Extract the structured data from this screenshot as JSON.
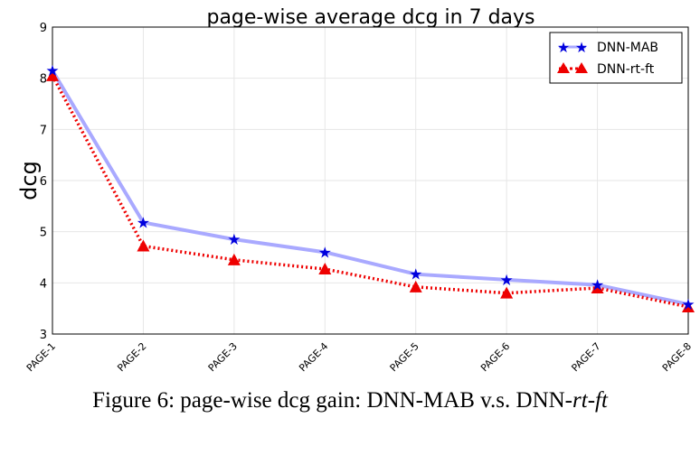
{
  "chart_data": {
    "type": "line",
    "title": "page-wise average dcg in 7 days",
    "xlabel": "",
    "ylabel": "dcg",
    "categories": [
      "PAGE-1",
      "PAGE-2",
      "PAGE-3",
      "PAGE-4",
      "PAGE-5",
      "PAGE-6",
      "PAGE-7",
      "PAGE-8"
    ],
    "ylim": [
      3,
      9
    ],
    "yticks": [
      "3",
      "4",
      "5",
      "6",
      "7",
      "8",
      "9"
    ],
    "grid": true,
    "legend_position": "top-right",
    "series": [
      {
        "name": "DNN-MAB",
        "values": [
          8.15,
          5.18,
          4.85,
          4.6,
          4.17,
          4.06,
          3.96,
          3.58
        ],
        "color": "#0000dd",
        "line_color": "#a9a9ff",
        "marker": "star"
      },
      {
        "name": "DNN-rt-ft",
        "values": [
          8.05,
          4.72,
          4.45,
          4.27,
          3.92,
          3.8,
          3.9,
          3.53
        ],
        "color": "#ee0000",
        "line_color": "#ee0000",
        "marker": "triangle"
      }
    ]
  },
  "caption": {
    "prefix": "Figure 6: page-wise dcg gain: DNN-MAB v.s. DNN-",
    "italic": "rt-ft"
  }
}
